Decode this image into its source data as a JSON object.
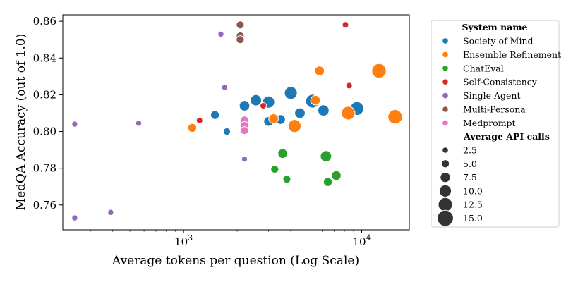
{
  "chart_data": {
    "type": "scatter",
    "xlabel": "Average tokens per question (Log Scale)",
    "ylabel": "MedQA Accuracy (out of 1.0)",
    "x_scale": "log",
    "xlim": [
      210,
      18500
    ],
    "ylim": [
      0.7465,
      0.8635
    ],
    "x_ticks": [
      {
        "value": 1000,
        "base": "10",
        "exp": "3"
      },
      {
        "value": 10000,
        "base": "10",
        "exp": "4"
      }
    ],
    "y_ticks": [
      {
        "value": 0.76,
        "label": "0.76"
      },
      {
        "value": 0.78,
        "label": "0.78"
      },
      {
        "value": 0.8,
        "label": "0.80"
      },
      {
        "value": 0.82,
        "label": "0.82"
      },
      {
        "value": 0.84,
        "label": "0.84"
      },
      {
        "value": 0.86,
        "label": "0.86"
      }
    ],
    "grid": false,
    "legend": {
      "placement": "outside-right",
      "hue_title": "System name",
      "size_title": "Average API calls",
      "size_entries": [
        2.5,
        5.0,
        7.5,
        10.0,
        12.5,
        15.0
      ],
      "size_labels": [
        "2.5",
        "5.0",
        "7.5",
        "10.0",
        "12.5",
        "15.0"
      ]
    },
    "series": [
      {
        "name": "Society of Mind",
        "color": "#1f77b4",
        "points": [
          {
            "x": 1500,
            "y": 0.809,
            "calls": 6
          },
          {
            "x": 1750,
            "y": 0.8,
            "calls": 4
          },
          {
            "x": 2200,
            "y": 0.814,
            "calls": 8
          },
          {
            "x": 2550,
            "y": 0.817,
            "calls": 9
          },
          {
            "x": 3000,
            "y": 0.816,
            "calls": 10
          },
          {
            "x": 3000,
            "y": 0.8055,
            "calls": 7
          },
          {
            "x": 3500,
            "y": 0.8065,
            "calls": 7
          },
          {
            "x": 4000,
            "y": 0.821,
            "calls": 11
          },
          {
            "x": 4500,
            "y": 0.81,
            "calls": 8
          },
          {
            "x": 5300,
            "y": 0.8165,
            "calls": 12
          },
          {
            "x": 6100,
            "y": 0.8115,
            "calls": 9
          },
          {
            "x": 9400,
            "y": 0.8125,
            "calls": 12
          }
        ]
      },
      {
        "name": "Ensemble Refinement",
        "color": "#ff7f0e",
        "points": [
          {
            "x": 1120,
            "y": 0.802,
            "calls": 6
          },
          {
            "x": 3200,
            "y": 0.807,
            "calls": 7
          },
          {
            "x": 4200,
            "y": 0.803,
            "calls": 11
          },
          {
            "x": 5500,
            "y": 0.817,
            "calls": 7
          },
          {
            "x": 5800,
            "y": 0.833,
            "calls": 7
          },
          {
            "x": 8400,
            "y": 0.81,
            "calls": 12
          },
          {
            "x": 12500,
            "y": 0.833,
            "calls": 13
          },
          {
            "x": 15400,
            "y": 0.808,
            "calls": 13
          }
        ]
      },
      {
        "name": "ChatEval",
        "color": "#2ca02c",
        "points": [
          {
            "x": 3250,
            "y": 0.7795,
            "calls": 5
          },
          {
            "x": 3600,
            "y": 0.788,
            "calls": 7
          },
          {
            "x": 3800,
            "y": 0.774,
            "calls": 5
          },
          {
            "x": 6300,
            "y": 0.7865,
            "calls": 9
          },
          {
            "x": 6450,
            "y": 0.7725,
            "calls": 6
          },
          {
            "x": 7200,
            "y": 0.776,
            "calls": 7
          }
        ]
      },
      {
        "name": "Self-Consistency",
        "color": "#d62728",
        "points": [
          {
            "x": 1230,
            "y": 0.806,
            "calls": 3
          },
          {
            "x": 2800,
            "y": 0.814,
            "calls": 3
          },
          {
            "x": 8100,
            "y": 0.858,
            "calls": 3
          },
          {
            "x": 8500,
            "y": 0.825,
            "calls": 3
          }
        ]
      },
      {
        "name": "Single Agent",
        "color": "#9467bd",
        "points": [
          {
            "x": 245,
            "y": 0.804,
            "calls": 2.5
          },
          {
            "x": 245,
            "y": 0.753,
            "calls": 2.5
          },
          {
            "x": 390,
            "y": 0.756,
            "calls": 2.5
          },
          {
            "x": 560,
            "y": 0.8045,
            "calls": 2.5
          },
          {
            "x": 1620,
            "y": 0.853,
            "calls": 2.5
          },
          {
            "x": 1700,
            "y": 0.824,
            "calls": 2.5
          },
          {
            "x": 2200,
            "y": 0.785,
            "calls": 2.5
          }
        ]
      },
      {
        "name": "Multi-Persona",
        "color": "#8c564b",
        "points": [
          {
            "x": 2080,
            "y": 0.858,
            "calls": 5
          },
          {
            "x": 2080,
            "y": 0.852,
            "calls": 5
          },
          {
            "x": 2080,
            "y": 0.85,
            "calls": 5
          }
        ]
      },
      {
        "name": "Medprompt",
        "color": "#e377c2",
        "points": [
          {
            "x": 2200,
            "y": 0.806,
            "calls": 6
          },
          {
            "x": 2200,
            "y": 0.803,
            "calls": 6
          },
          {
            "x": 2200,
            "y": 0.8005,
            "calls": 5
          }
        ]
      }
    ]
  }
}
